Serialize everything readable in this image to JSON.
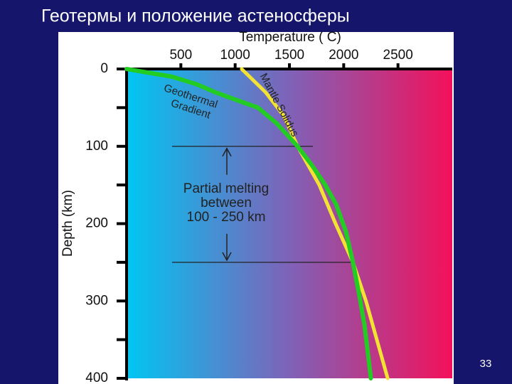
{
  "slide_title": "Геотермы и положение астеносферы",
  "page_number": "33",
  "chart_data": {
    "type": "line",
    "x_label": "Temperature ( C)",
    "y_label": "Depth (km)",
    "xlim": [
      0,
      3000
    ],
    "xticks": [
      500,
      1000,
      1500,
      2000,
      2500
    ],
    "ylim": [
      0,
      400
    ],
    "yticks": [
      0,
      100,
      200,
      300,
      400
    ],
    "yminor": [
      50,
      150,
      250,
      350
    ],
    "y_inverted": true,
    "series": [
      {
        "name": [
          "Geothermal",
          "Gradient"
        ],
        "color": "#22cc22",
        "x": [
          0,
          420,
          650,
          815,
          1010,
          1210,
          1380,
          1575,
          1710,
          1830,
          1930,
          2020,
          2085,
          2140,
          2190,
          2225,
          2250
        ],
        "values": [
          0,
          10,
          20,
          30,
          40,
          50,
          70,
          100,
          125,
          150,
          175,
          210,
          250,
          290,
          330,
          370,
          400
        ]
      },
      {
        "name": [
          "Mantle Solidus"
        ],
        "color": "#f2e234",
        "x": [
          1060,
          1280,
          1445,
          1575,
          1775,
          1925,
          2085,
          2205,
          2305,
          2405
        ],
        "values": [
          0,
          30,
          60,
          100,
          150,
          200,
          250,
          300,
          350,
          400
        ]
      }
    ],
    "annotation": {
      "lines": [
        "Partial melting",
        "between",
        "100 - 250 km"
      ],
      "range": [
        100,
        250
      ]
    }
  }
}
